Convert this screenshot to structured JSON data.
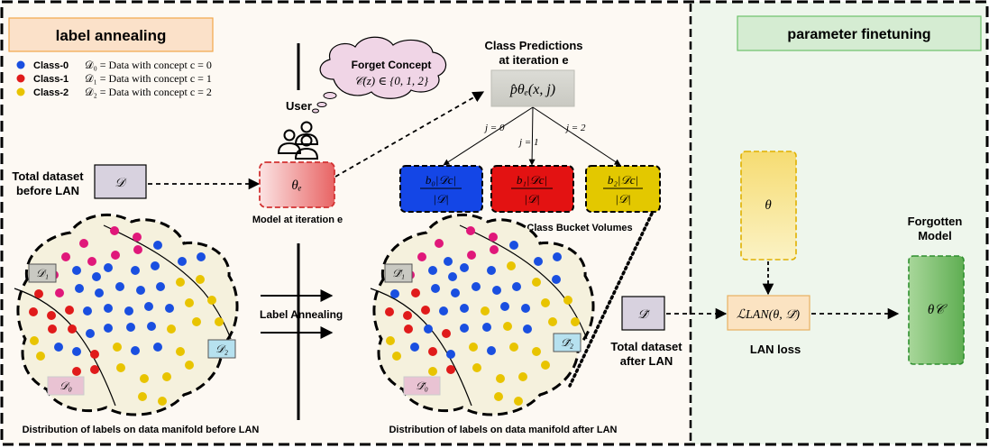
{
  "colors": {
    "left_bg": "#fdf9f3",
    "right_bg": "#eef6ec",
    "class0": "#1a4fe0",
    "class1": "#e01b1b",
    "class2": "#e8c400",
    "pink": "#e0187a",
    "manifold_fill": "#f5f1dd",
    "blue_bucket": "#1446e6",
    "red_bucket": "#e31212",
    "yellow_bucket": "#e3c800"
  },
  "sections": {
    "left_title": "label annealing",
    "right_title": "parameter finetuning"
  },
  "legend": [
    {
      "label": "Class-0",
      "desc": "𝒟₀ = Data with concept c = 0"
    },
    {
      "label": "Class-1",
      "desc": "𝒟₁ = Data with concept c = 1"
    },
    {
      "label": "Class-2",
      "desc": "𝒟₂ = Data with concept c = 2"
    }
  ],
  "user": {
    "label": "User",
    "cloud_title": "Forget Concept",
    "cloud_formula": "𝒞(z) ∈ {0, 1, 2}"
  },
  "total_before": {
    "line1": "Total dataset",
    "line2": "before LAN",
    "symbol": "𝒟"
  },
  "model": {
    "symbol": "θₑ",
    "caption": "Model at iteration e"
  },
  "predictions": {
    "title_line1": "Class Predictions",
    "title_line2": "at iteration e",
    "formula": "p̂θₑ(x, j)",
    "branches": [
      "j = 0",
      "j = 1",
      "j = 2"
    ]
  },
  "buckets": {
    "items": [
      {
        "num": "b₀|𝒟c|",
        "den": "|𝒟|"
      },
      {
        "num": "b₁|𝒟c|",
        "den": "|𝒟|"
      },
      {
        "num": "b₂|𝒟c|",
        "den": "|𝒟|"
      }
    ],
    "caption": "Class Bucket Volumes"
  },
  "manifold_before": {
    "tags": [
      "𝒟₁",
      "𝒟₂",
      "𝒟₀"
    ],
    "caption": "Distribution of labels on data manifold before LAN"
  },
  "manifold_after": {
    "tags": [
      "𝒟̃₁",
      "𝒟̃₂",
      "𝒟̃₀"
    ],
    "caption": "Distribution of labels on data manifold after LAN"
  },
  "annealing_label": "Label Annealing",
  "total_after": {
    "line1": "Total dataset",
    "line2": "after LAN",
    "symbol": "𝒟̃"
  },
  "theta": {
    "symbol": "θ"
  },
  "loss": {
    "formula": "ℒLAN(θ, 𝒟̃)",
    "label": "LAN loss"
  },
  "forgotten": {
    "line1": "Forgotten",
    "line2": "Model",
    "symbol": "θ𝒞"
  },
  "dots_before": [
    {
      "x": 93,
      "y": 270,
      "c": "pink"
    },
    {
      "x": 127,
      "y": 256,
      "c": "pink"
    },
    {
      "x": 152,
      "y": 263,
      "c": "pink"
    },
    {
      "x": 73,
      "y": 285,
      "c": "pink"
    },
    {
      "x": 102,
      "y": 290,
      "c": "pink"
    },
    {
      "x": 128,
      "y": 283,
      "c": "pink"
    },
    {
      "x": 153,
      "y": 277,
      "c": "pink"
    },
    {
      "x": 175,
      "y": 272,
      "c": "class0"
    },
    {
      "x": 60,
      "y": 305,
      "c": "pink"
    },
    {
      "x": 85,
      "y": 300,
      "c": "class0"
    },
    {
      "x": 107,
      "y": 307,
      "c": "class0"
    },
    {
      "x": 120,
      "y": 297,
      "c": "class0"
    },
    {
      "x": 150,
      "y": 300,
      "c": "class0"
    },
    {
      "x": 172,
      "y": 295,
      "c": "class0"
    },
    {
      "x": 202,
      "y": 290,
      "c": "class0"
    },
    {
      "x": 223,
      "y": 285,
      "c": "class0"
    },
    {
      "x": 43,
      "y": 326,
      "c": "class1"
    },
    {
      "x": 66,
      "y": 325,
      "c": "pink"
    },
    {
      "x": 88,
      "y": 320,
      "c": "class0"
    },
    {
      "x": 110,
      "y": 325,
      "c": "class0"
    },
    {
      "x": 133,
      "y": 318,
      "c": "class0"
    },
    {
      "x": 156,
      "y": 322,
      "c": "class0"
    },
    {
      "x": 178,
      "y": 318,
      "c": "class0"
    },
    {
      "x": 200,
      "y": 313,
      "c": "class2"
    },
    {
      "x": 222,
      "y": 310,
      "c": "class2"
    },
    {
      "x": 37,
      "y": 346,
      "c": "class1"
    },
    {
      "x": 57,
      "y": 350,
      "c": "class1"
    },
    {
      "x": 77,
      "y": 344,
      "c": "class1"
    },
    {
      "x": 97,
      "y": 345,
      "c": "class0"
    },
    {
      "x": 120,
      "y": 342,
      "c": "class0"
    },
    {
      "x": 143,
      "y": 345,
      "c": "class0"
    },
    {
      "x": 165,
      "y": 340,
      "c": "class0"
    },
    {
      "x": 188,
      "y": 342,
      "c": "class0"
    },
    {
      "x": 210,
      "y": 336,
      "c": "class2"
    },
    {
      "x": 235,
      "y": 333,
      "c": "class2"
    },
    {
      "x": 38,
      "y": 378,
      "c": "class2"
    },
    {
      "x": 58,
      "y": 365,
      "c": "class1"
    },
    {
      "x": 80,
      "y": 365,
      "c": "class1"
    },
    {
      "x": 100,
      "y": 370,
      "c": "class0"
    },
    {
      "x": 120,
      "y": 364,
      "c": "class0"
    },
    {
      "x": 145,
      "y": 363,
      "c": "class0"
    },
    {
      "x": 168,
      "y": 362,
      "c": "class0"
    },
    {
      "x": 190,
      "y": 365,
      "c": "class2"
    },
    {
      "x": 218,
      "y": 357,
      "c": "class2"
    },
    {
      "x": 243,
      "y": 357,
      "c": "class2"
    },
    {
      "x": 45,
      "y": 395,
      "c": "class2"
    },
    {
      "x": 65,
      "y": 385,
      "c": "class0"
    },
    {
      "x": 85,
      "y": 390,
      "c": "class0"
    },
    {
      "x": 105,
      "y": 393,
      "c": "class1"
    },
    {
      "x": 130,
      "y": 385,
      "c": "class2"
    },
    {
      "x": 150,
      "y": 389,
      "c": "class0"
    },
    {
      "x": 175,
      "y": 385,
      "c": "class0"
    },
    {
      "x": 200,
      "y": 390,
      "c": "class2"
    },
    {
      "x": 85,
      "y": 412,
      "c": "class1"
    },
    {
      "x": 105,
      "y": 410,
      "c": "class1"
    },
    {
      "x": 134,
      "y": 408,
      "c": "class2"
    },
    {
      "x": 160,
      "y": 420,
      "c": "class2"
    },
    {
      "x": 185,
      "y": 418,
      "c": "class2"
    },
    {
      "x": 210,
      "y": 405,
      "c": "class2"
    },
    {
      "x": 158,
      "y": 440,
      "c": "class2"
    },
    {
      "x": 180,
      "y": 445,
      "c": "class2"
    }
  ],
  "dots_after": [
    {
      "x": 487,
      "y": 270,
      "c": "pink"
    },
    {
      "x": 522,
      "y": 256,
      "c": "pink"
    },
    {
      "x": 547,
      "y": 263,
      "c": "pink"
    },
    {
      "x": 468,
      "y": 285,
      "c": "pink"
    },
    {
      "x": 497,
      "y": 290,
      "c": "class0"
    },
    {
      "x": 523,
      "y": 283,
      "c": "pink"
    },
    {
      "x": 548,
      "y": 277,
      "c": "pink"
    },
    {
      "x": 570,
      "y": 272,
      "c": "class0"
    },
    {
      "x": 455,
      "y": 305,
      "c": "pink"
    },
    {
      "x": 480,
      "y": 300,
      "c": "class0"
    },
    {
      "x": 502,
      "y": 307,
      "c": "class0"
    },
    {
      "x": 515,
      "y": 297,
      "c": "class0"
    },
    {
      "x": 545,
      "y": 300,
      "c": "class0"
    },
    {
      "x": 567,
      "y": 295,
      "c": "class2"
    },
    {
      "x": 597,
      "y": 290,
      "c": "class0"
    },
    {
      "x": 618,
      "y": 285,
      "c": "class0"
    },
    {
      "x": 438,
      "y": 326,
      "c": "class0"
    },
    {
      "x": 461,
      "y": 325,
      "c": "class1"
    },
    {
      "x": 483,
      "y": 320,
      "c": "class0"
    },
    {
      "x": 505,
      "y": 325,
      "c": "class0"
    },
    {
      "x": 528,
      "y": 318,
      "c": "class0"
    },
    {
      "x": 551,
      "y": 322,
      "c": "class0"
    },
    {
      "x": 573,
      "y": 318,
      "c": "class0"
    },
    {
      "x": 595,
      "y": 313,
      "c": "class2"
    },
    {
      "x": 617,
      "y": 310,
      "c": "class0"
    },
    {
      "x": 432,
      "y": 346,
      "c": "class1"
    },
    {
      "x": 452,
      "y": 350,
      "c": "class1"
    },
    {
      "x": 472,
      "y": 344,
      "c": "class1"
    },
    {
      "x": 492,
      "y": 345,
      "c": "class0"
    },
    {
      "x": 515,
      "y": 342,
      "c": "class0"
    },
    {
      "x": 538,
      "y": 345,
      "c": "class2"
    },
    {
      "x": 560,
      "y": 340,
      "c": "class0"
    },
    {
      "x": 583,
      "y": 342,
      "c": "class0"
    },
    {
      "x": 605,
      "y": 336,
      "c": "class2"
    },
    {
      "x": 630,
      "y": 333,
      "c": "class2"
    },
    {
      "x": 433,
      "y": 378,
      "c": "class2"
    },
    {
      "x": 453,
      "y": 365,
      "c": "class1"
    },
    {
      "x": 475,
      "y": 365,
      "c": "class0"
    },
    {
      "x": 495,
      "y": 370,
      "c": "class1"
    },
    {
      "x": 515,
      "y": 364,
      "c": "class0"
    },
    {
      "x": 540,
      "y": 363,
      "c": "class0"
    },
    {
      "x": 563,
      "y": 362,
      "c": "class2"
    },
    {
      "x": 585,
      "y": 365,
      "c": "class0"
    },
    {
      "x": 613,
      "y": 357,
      "c": "class2"
    },
    {
      "x": 638,
      "y": 357,
      "c": "class2"
    },
    {
      "x": 440,
      "y": 395,
      "c": "class2"
    },
    {
      "x": 460,
      "y": 385,
      "c": "class0"
    },
    {
      "x": 480,
      "y": 390,
      "c": "class1"
    },
    {
      "x": 500,
      "y": 393,
      "c": "class0"
    },
    {
      "x": 525,
      "y": 385,
      "c": "class2"
    },
    {
      "x": 545,
      "y": 389,
      "c": "class0"
    },
    {
      "x": 570,
      "y": 385,
      "c": "class2"
    },
    {
      "x": 595,
      "y": 390,
      "c": "class2"
    },
    {
      "x": 480,
      "y": 412,
      "c": "class2"
    },
    {
      "x": 500,
      "y": 410,
      "c": "class1"
    },
    {
      "x": 529,
      "y": 408,
      "c": "class2"
    },
    {
      "x": 555,
      "y": 420,
      "c": "class2"
    },
    {
      "x": 580,
      "y": 418,
      "c": "class2"
    },
    {
      "x": 605,
      "y": 405,
      "c": "class2"
    },
    {
      "x": 553,
      "y": 440,
      "c": "class2"
    },
    {
      "x": 575,
      "y": 445,
      "c": "class2"
    }
  ]
}
